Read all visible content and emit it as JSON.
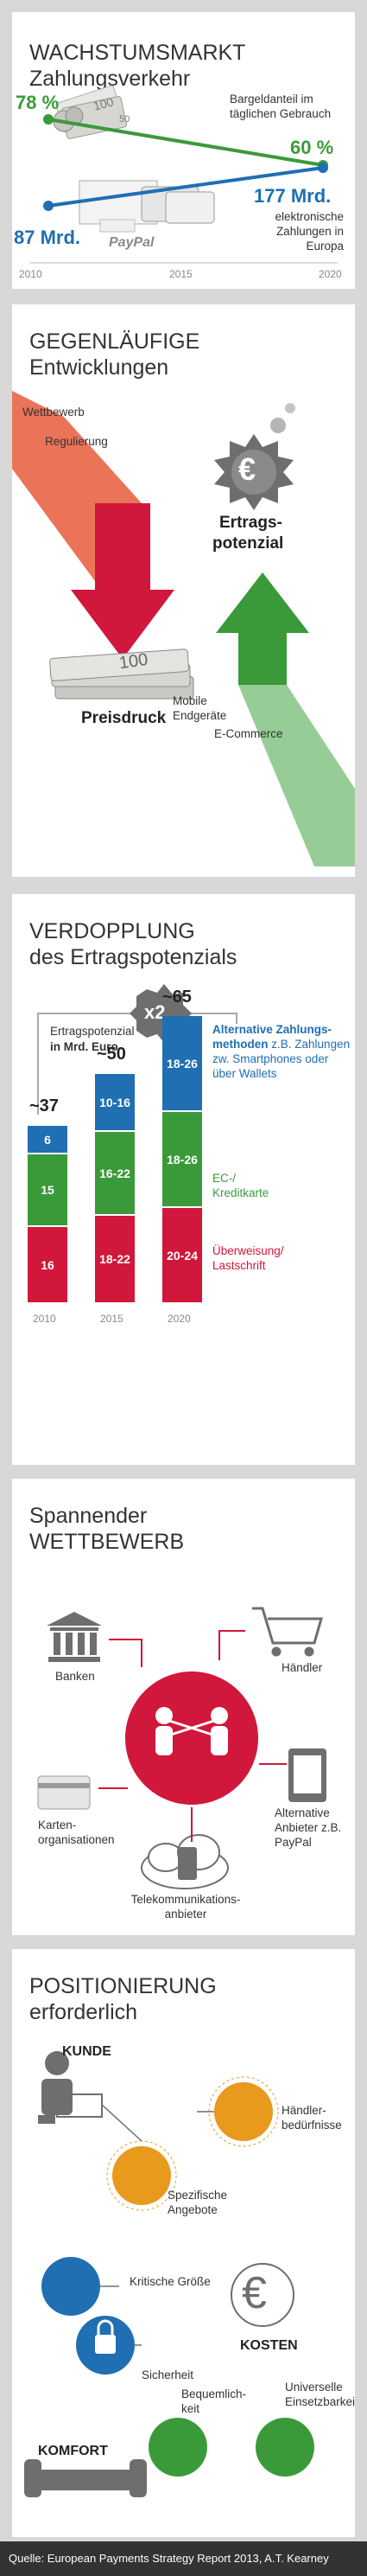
{
  "colors": {
    "green": "#3a9a3a",
    "blue": "#1f6fb2",
    "red": "#d1173b",
    "grey": "#a0a0a0"
  },
  "s1": {
    "title1": "WACHSTUMSMARKT",
    "title2": "Zahlungsverkehr",
    "cash_start": "78 %",
    "cash_end": "60 %",
    "cash_label": "Bargeldanteil im täglichen Gebrauch",
    "epay_start": "87 Mrd.",
    "epay_end": "177 Mrd.",
    "epay_label": "elektronische Zahlungen in Europa",
    "paypal": "PayPal",
    "years": [
      "2010",
      "2015",
      "2020"
    ],
    "bill_digits": "100",
    "coin_digits": "50"
  },
  "s2": {
    "title1": "GEGENLÄUFIGE",
    "title2": "Entwicklungen",
    "wettbewerb": "Wettbewerb",
    "regulierung": "Regulierung",
    "ertrags": "Ertrags-",
    "potenzial": "potenzial",
    "preisdruck": "Preisdruck",
    "mobile": "Mobile Endgeräte",
    "ecommerce": "E-Commerce",
    "bill_digits": "100",
    "euro": "€"
  },
  "s3": {
    "title1": "VERDOPPLUNG",
    "title2": "des Ertragspotenzials",
    "label_a": "Ertragspotenzial",
    "label_b": "in Mrd. Euro",
    "times": "x2",
    "legend_alt_bold": "Alternative Zahlungs-methoden",
    "legend_alt_rest": "z.B. Zahlungen zw. Smartphones oder über Wallets",
    "legend_ec": "EC-/ Kreditkarte",
    "legend_transfer": "Überweisung/ Lastschrift"
  },
  "chart_data": {
    "type": "bar",
    "title": "VERDOPPLUNG des Ertragspotenzials",
    "ylabel": "Ertragspotenzial in Mrd. Euro",
    "categories": [
      "2010",
      "2015",
      "2020"
    ],
    "totals": [
      "~37",
      "~50",
      "~65"
    ],
    "series": [
      {
        "name": "Überweisung/ Lastschrift",
        "color": "#d1173b",
        "labels": [
          "16",
          "18-22",
          "20-24"
        ],
        "values": [
          16,
          20,
          22
        ]
      },
      {
        "name": "EC-/ Kreditkarte",
        "color": "#3a9a3a",
        "labels": [
          "15",
          "16-22",
          "18-26"
        ],
        "values": [
          15,
          19,
          22
        ]
      },
      {
        "name": "Alternative Zahlungsmethoden",
        "color": "#1f6fb2",
        "labels": [
          "6",
          "10-16",
          "18-26"
        ],
        "values": [
          6,
          13,
          22
        ]
      }
    ]
  },
  "s4": {
    "title1": "Spannender",
    "title2": "WETTBEWERB",
    "banken": "Banken",
    "haendler": "Händler",
    "karten": "Karten-organisationen",
    "alt": "Alternative Anbieter z.B. PayPal",
    "telco": "Telekommunikations-anbieter"
  },
  "s5": {
    "title1": "POSITIONIERUNG",
    "title2": "erforderlich",
    "kunde": "KUNDE",
    "haendler_beduerf": "Händler-bedürfnisse",
    "spezifisch": "Spezifische Angebote",
    "kritisch": "Kritische Größe",
    "kosten": "KOSTEN",
    "sicherheit": "Sicherheit",
    "bequem": "Bequemlich-keit",
    "universell": "Universelle Einsetzbarkeit",
    "komfort": "KOMFORT",
    "euro": "€"
  },
  "footer": "Quelle: European Payments Strategy Report 2013, A.T. Kearney"
}
